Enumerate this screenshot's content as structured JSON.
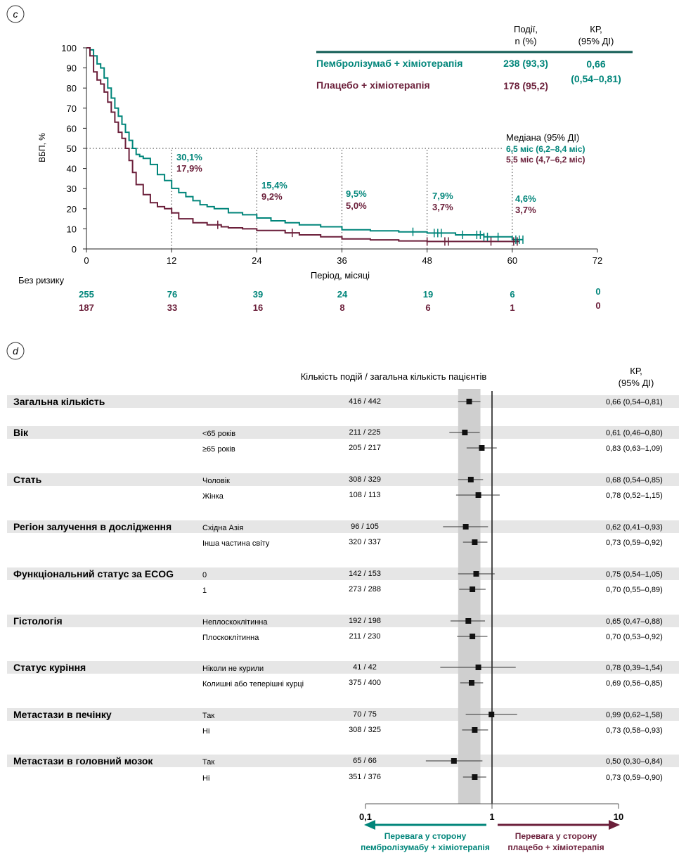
{
  "colors": {
    "pembro": "#00857a",
    "placebo": "#6b1f3a",
    "band": "#e6e6e6",
    "ci_band": "#cfcfcf"
  },
  "panel_c": {
    "label": "c",
    "header": {
      "events": [
        "Події,",
        "n (%)"
      ],
      "hr": [
        "КР,",
        "(95% ДІ)"
      ]
    },
    "arms": [
      {
        "name": "Пембролізумаб + хіміотерапія",
        "events": "238 (93,3)"
      },
      {
        "name": "Плацебо + хіміотерапія",
        "events": "178 (95,2)"
      }
    ],
    "hr_value": "0,66",
    "hr_ci": "(0,54–0,81)",
    "median_title": "Медіана (95% ДІ)",
    "median_pembro": "6,5 міс (6,2–8,4 міс)",
    "median_placebo": "5,5 міс (4,7–6,2 міс)",
    "risk_title": "Без ризику",
    "risk_pembro": [
      "255",
      "76",
      "39",
      "24",
      "19",
      "6",
      "0"
    ],
    "risk_placebo": [
      "187",
      "33",
      "16",
      "8",
      "6",
      "1",
      "0"
    ],
    "landmarks": [
      {
        "month": 12,
        "pembro": "30,1%",
        "placebo": "17,9%"
      },
      {
        "month": 24,
        "pembro": "15,4%",
        "placebo": "9,2%"
      },
      {
        "month": 36,
        "pembro": "9,5%",
        "placebo": "5,0%"
      },
      {
        "month": 48,
        "pembro": "7,9%",
        "placebo": "3,7%"
      },
      {
        "month": 60,
        "pembro": "4,6%",
        "placebo": "3,7%"
      }
    ]
  },
  "chart_data": [
    {
      "type": "line",
      "xlabel": "Період, місяці",
      "ylabel": "ВБП, %",
      "xlim": [
        0,
        72
      ],
      "ylim": [
        0,
        100
      ],
      "xticks": [
        "0",
        "12",
        "24",
        "36",
        "48",
        "60",
        "72"
      ],
      "yticks": [
        "0",
        "10",
        "20",
        "30",
        "40",
        "50",
        "60",
        "70",
        "80",
        "90",
        "100"
      ],
      "series": [
        {
          "name": "Пембролізумаб + хіміотерапія",
          "x": [
            0,
            0.5,
            1,
            1.5,
            2,
            2.5,
            3,
            3.5,
            4,
            4.5,
            5,
            5.5,
            6,
            6.5,
            7,
            7.5,
            8,
            9,
            10,
            11,
            12,
            13,
            14,
            15,
            16,
            17,
            18,
            20,
            22,
            24,
            26,
            28,
            30,
            33,
            36,
            40,
            44,
            48,
            52,
            56,
            60,
            61.5
          ],
          "y": [
            100,
            99,
            96,
            92,
            90,
            85,
            80,
            75,
            70,
            66,
            62,
            58,
            54,
            50,
            47,
            46,
            45,
            42,
            37,
            34,
            30.1,
            28,
            26,
            24,
            22,
            21,
            20,
            18,
            17,
            15.4,
            14,
            13,
            12,
            11,
            9.5,
            9,
            8.5,
            7.9,
            7,
            6,
            4.6,
            4.6
          ]
        },
        {
          "name": "Плацебо + хіміотерапія",
          "x": [
            0,
            0.5,
            1,
            1.5,
            2,
            2.5,
            3,
            3.5,
            4,
            4.5,
            5,
            5.5,
            6,
            6.5,
            7,
            8,
            9,
            10,
            11,
            12,
            13,
            15,
            17,
            19,
            20,
            22,
            24,
            28,
            30,
            33,
            36,
            40,
            44,
            48,
            52,
            56,
            60,
            61
          ],
          "y": [
            100,
            96,
            88,
            84,
            82,
            78,
            73,
            68,
            63,
            58,
            55,
            50,
            44,
            38,
            32,
            27,
            23,
            21,
            20,
            17.9,
            15,
            13,
            12,
            11,
            10.5,
            10,
            9.2,
            8,
            7,
            6,
            5,
            4.5,
            4,
            3.7,
            3.7,
            3.7,
            3.7,
            3.7
          ]
        }
      ],
      "median_line": 50
    },
    {
      "type": "forest",
      "xlabel_scale": "log",
      "xlim": [
        0.1,
        10
      ],
      "xticks": [
        "0,1",
        "1",
        "10"
      ],
      "column_header": "Кількість подій / загальна кількість пацієнтів",
      "hr_header": [
        "КР,",
        "(95% ДІ)"
      ],
      "ci_band": [
        0.54,
        0.81
      ],
      "favor_left": [
        "Перевага у сторону",
        "пембролізумабу + хіміотерапія"
      ],
      "favor_right": [
        "Перевага у сторону",
        "плацебо + хіміотерапія"
      ],
      "rows": [
        {
          "group": "Загальна кількість",
          "sub": "",
          "n": "416 / 442",
          "hr_text": "0,66 (0,54–0,81)",
          "hr": 0.66,
          "lo": 0.54,
          "hi": 0.81,
          "shaded": true
        },
        {
          "group": "Вік",
          "sub": "<65 років",
          "n": "211 / 225",
          "hr_text": "0,61 (0,46–0,80)",
          "hr": 0.61,
          "lo": 0.46,
          "hi": 0.8,
          "shaded": true
        },
        {
          "group": "",
          "sub": "≥65 років",
          "n": "205 / 217",
          "hr_text": "0,83 (0,63–1,09)",
          "hr": 0.83,
          "lo": 0.63,
          "hi": 1.09,
          "shaded": false
        },
        {
          "group": "Стать",
          "sub": "Чоловік",
          "n": "308 / 329",
          "hr_text": "0,68 (0,54–0,85)",
          "hr": 0.68,
          "lo": 0.54,
          "hi": 0.85,
          "shaded": true
        },
        {
          "group": "",
          "sub": "Жінка",
          "n": "108 / 113",
          "hr_text": "0,78 (0,52–1,15)",
          "hr": 0.78,
          "lo": 0.52,
          "hi": 1.15,
          "shaded": false
        },
        {
          "group": "Регіон залучення в дослідження",
          "sub": "Східна Азія",
          "n": "96 / 105",
          "hr_text": "0,62 (0,41–0,93)",
          "hr": 0.62,
          "lo": 0.41,
          "hi": 0.93,
          "shaded": true
        },
        {
          "group": "",
          "sub": "Інша частина світу",
          "n": "320 / 337",
          "hr_text": "0,73 (0,59–0,92)",
          "hr": 0.73,
          "lo": 0.59,
          "hi": 0.92,
          "shaded": false
        },
        {
          "group": "Функціональний статус за ECOG",
          "sub": "0",
          "n": "142 / 153",
          "hr_text": "0,75 (0,54–1,05)",
          "hr": 0.75,
          "lo": 0.54,
          "hi": 1.05,
          "shaded": true
        },
        {
          "group": "",
          "sub": "1",
          "n": "273 / 288",
          "hr_text": "0,70 (0,55–0,89)",
          "hr": 0.7,
          "lo": 0.55,
          "hi": 0.89,
          "shaded": false
        },
        {
          "group": "Гістологія",
          "sub": "Неплоскоклітинна",
          "n": "192 / 198",
          "hr_text": "0,65 (0,47–0,88)",
          "hr": 0.65,
          "lo": 0.47,
          "hi": 0.88,
          "shaded": true
        },
        {
          "group": "",
          "sub": "Плоскоклітинна",
          "n": "211 / 230",
          "hr_text": "0,70 (0,53–0,92)",
          "hr": 0.7,
          "lo": 0.53,
          "hi": 0.92,
          "shaded": false
        },
        {
          "group": "Статус куріння",
          "sub": "Ніколи не курили",
          "n": "41 / 42",
          "hr_text": "0,78 (0,39–1,54)",
          "hr": 0.78,
          "lo": 0.39,
          "hi": 1.54,
          "shaded": true
        },
        {
          "group": "",
          "sub": "Колишні або теперішні курці",
          "n": "375 / 400",
          "hr_text": "0,69 (0,56–0,85)",
          "hr": 0.69,
          "lo": 0.56,
          "hi": 0.85,
          "shaded": false
        },
        {
          "group": "Метастази в печінку",
          "sub": "Так",
          "n": "70 / 75",
          "hr_text": "0,99 (0,62–1,58)",
          "hr": 0.99,
          "lo": 0.62,
          "hi": 1.58,
          "shaded": true
        },
        {
          "group": "",
          "sub": "Ні",
          "n": "308 / 325",
          "hr_text": "0,73 (0,58–0,93)",
          "hr": 0.73,
          "lo": 0.58,
          "hi": 0.93,
          "shaded": false
        },
        {
          "group": "Метастази в головний мозок",
          "sub": "Так",
          "n": "65 / 66",
          "hr_text": "0,50 (0,30–0,84)",
          "hr": 0.5,
          "lo": 0.3,
          "hi": 0.84,
          "shaded": true
        },
        {
          "group": "",
          "sub": "Ні",
          "n": "351 / 376",
          "hr_text": "0,73 (0,59–0,90)",
          "hr": 0.73,
          "lo": 0.59,
          "hi": 0.9,
          "shaded": false
        }
      ]
    }
  ],
  "panel_d": {
    "label": "d"
  }
}
